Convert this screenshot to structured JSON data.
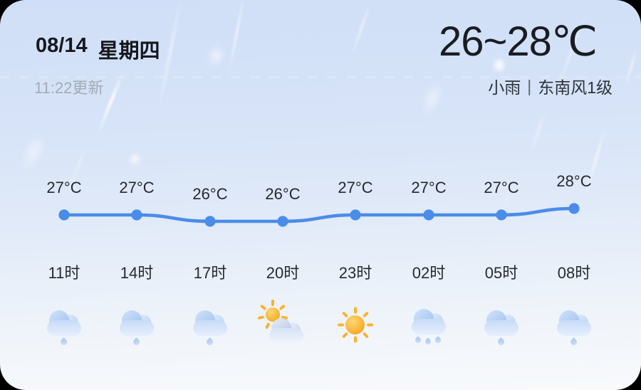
{
  "card": {
    "date": "08/14",
    "weekday": "星期四",
    "updated": "11:22更新",
    "temp_range": "26~28℃",
    "condition": "小雨",
    "separator": "|",
    "wind": "东南风1级"
  },
  "colors": {
    "line": "#4a8ce9",
    "sun": "#f7a823",
    "cloud": "#b9d2f4",
    "bg_top": "#d0dff7",
    "bg_bottom": "#f8fafc"
  },
  "chart_data": {
    "type": "line",
    "x": [
      "11时",
      "14时",
      "17时",
      "20时",
      "23时",
      "02时",
      "05时",
      "08时"
    ],
    "series": [
      {
        "name": "hourly-temperature",
        "values": [
          27,
          27,
          26,
          26,
          27,
          27,
          27,
          28
        ]
      }
    ],
    "unit": "°C",
    "point_labels": [
      "27°C",
      "27°C",
      "26°C",
      "26°C",
      "27°C",
      "27°C",
      "27°C",
      "28°C"
    ],
    "icons": [
      "light-rain",
      "light-rain",
      "light-rain",
      "partly-cloudy",
      "sunny",
      "moderate-rain",
      "light-rain",
      "light-rain"
    ],
    "ylim": [
      25,
      29
    ],
    "grid": false,
    "legend": false,
    "line_color": "#4a8ce9"
  }
}
